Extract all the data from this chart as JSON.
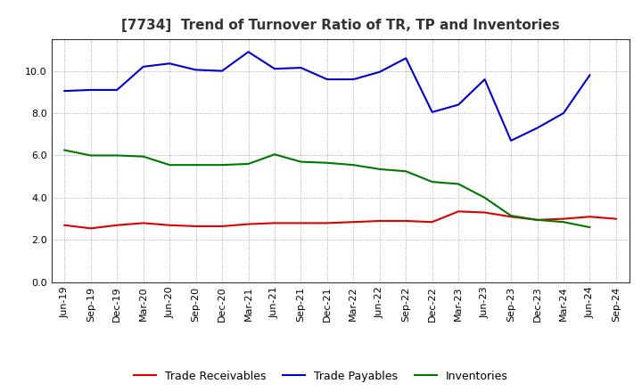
{
  "title": "[7734]  Trend of Turnover Ratio of TR, TP and Inventories",
  "x_labels": [
    "Jun-19",
    "Sep-19",
    "Dec-19",
    "Mar-20",
    "Jun-20",
    "Sep-20",
    "Dec-20",
    "Mar-21",
    "Jun-21",
    "Sep-21",
    "Dec-21",
    "Mar-22",
    "Jun-22",
    "Sep-22",
    "Dec-22",
    "Mar-23",
    "Jun-23",
    "Sep-23",
    "Dec-23",
    "Mar-24",
    "Jun-24",
    "Sep-24"
  ],
  "trade_receivables": [
    2.7,
    2.55,
    2.7,
    2.8,
    2.7,
    2.65,
    2.65,
    2.75,
    2.8,
    2.8,
    2.8,
    2.85,
    2.9,
    2.9,
    2.85,
    3.35,
    3.3,
    3.1,
    2.95,
    3.0,
    3.1,
    3.0
  ],
  "trade_payables": [
    9.05,
    9.1,
    9.1,
    10.2,
    10.35,
    10.05,
    10.0,
    10.9,
    10.1,
    10.15,
    9.6,
    9.6,
    9.95,
    10.6,
    8.05,
    8.4,
    9.6,
    6.7,
    7.3,
    8.0,
    9.8,
    null
  ],
  "inventories": [
    6.25,
    6.0,
    6.0,
    5.95,
    5.55,
    5.55,
    5.55,
    5.6,
    6.05,
    5.7,
    5.65,
    5.55,
    5.35,
    5.25,
    4.75,
    4.65,
    4.0,
    3.15,
    2.95,
    2.85,
    2.6,
    null
  ],
  "ylim": [
    0,
    11.5
  ],
  "yticks": [
    0.0,
    2.0,
    4.0,
    6.0,
    8.0,
    10.0
  ],
  "line_colors": {
    "trade_receivables": "#dd0000",
    "trade_payables": "#0000cc",
    "inventories": "#007700"
  },
  "legend_labels": [
    "Trade Receivables",
    "Trade Payables",
    "Inventories"
  ],
  "background_color": "#ffffff",
  "plot_bg_color": "#ffffff",
  "grid_color": "#999999",
  "title_fontsize": 11,
  "tick_fontsize": 8
}
